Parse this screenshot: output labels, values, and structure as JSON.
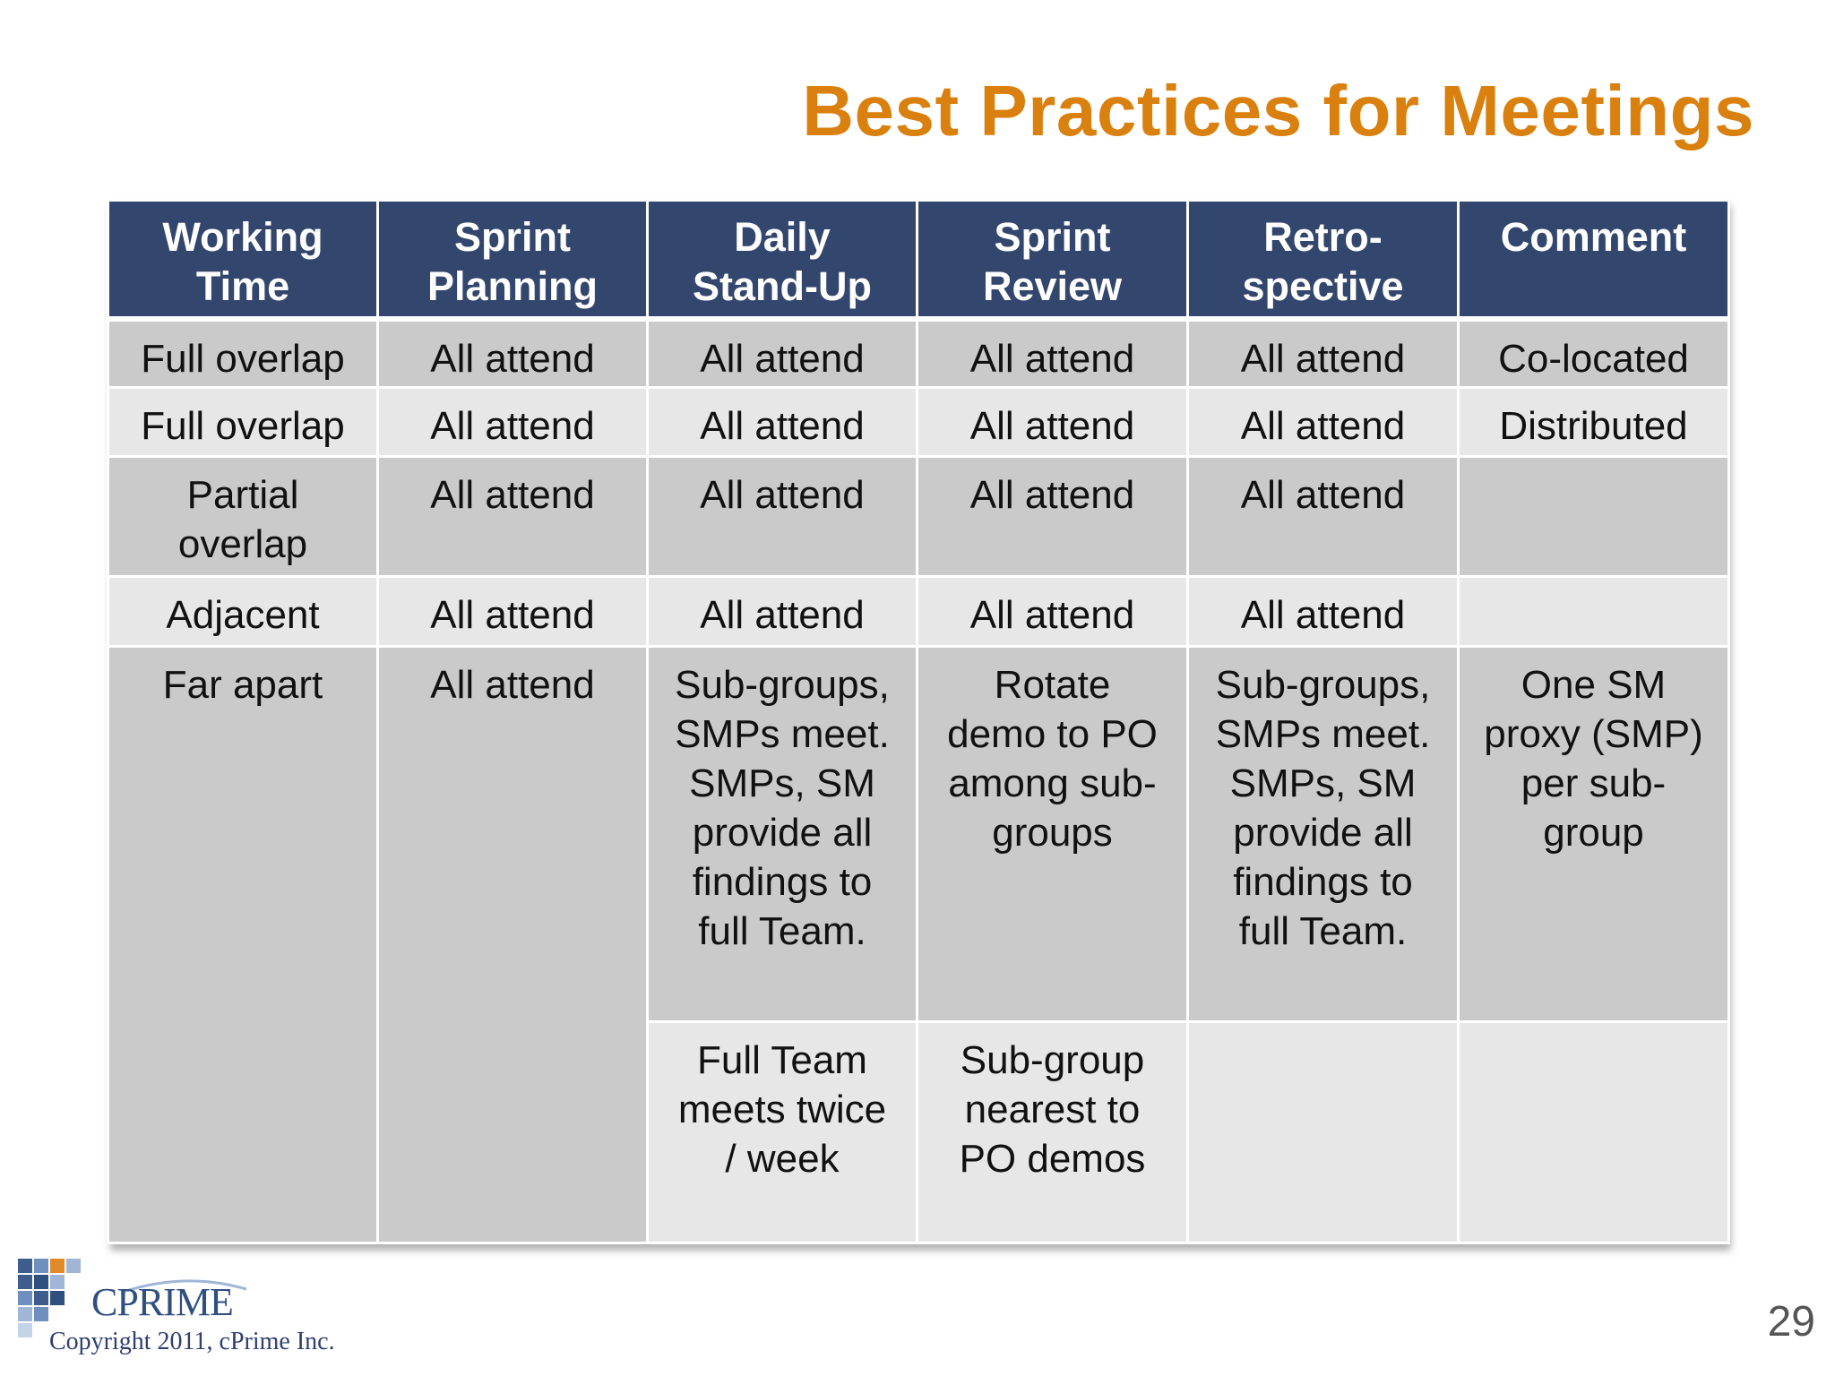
{
  "slide": {
    "title": "Best Practices for Meetings",
    "page_number": "29",
    "copyright": "Copyright 2011, cPrime Inc.",
    "logo_text": "CPRIME",
    "colors": {
      "title": "#d9800f",
      "header_bg": "#33466d",
      "row_dark": "#cacaca",
      "row_light": "#e7e7e7"
    }
  },
  "table": {
    "headers": [
      [
        "Working",
        "Time"
      ],
      [
        "Sprint",
        "Planning"
      ],
      [
        "Daily",
        "Stand-Up"
      ],
      [
        "Sprint",
        "Review"
      ],
      [
        "Retro-",
        "spective"
      ],
      [
        "Comment"
      ]
    ],
    "rows": [
      [
        "Full overlap",
        "All attend",
        "All attend",
        "All attend",
        "All attend",
        "Co-located"
      ],
      [
        "Full overlap",
        "All attend",
        "All attend",
        "All attend",
        "All attend",
        "Distributed"
      ],
      [
        [
          "Partial",
          "overlap"
        ],
        "All attend",
        "All attend",
        "All attend",
        "All attend",
        ""
      ],
      [
        "Adjacent",
        "All attend",
        "All attend",
        "All attend",
        "All attend",
        ""
      ]
    ],
    "far_apart": {
      "working_time": "Far apart",
      "sprint_planning": "All attend",
      "row_a": {
        "daily_standup": [
          "Sub-groups,",
          "SMPs meet.",
          "SMPs, SM",
          "provide all",
          "findings to",
          "full Team."
        ],
        "sprint_review": [
          "Rotate",
          "demo to PO",
          "among sub-",
          "groups"
        ],
        "retrospective": [
          "Sub-groups,",
          "SMPs meet.",
          "SMPs, SM",
          "provide all",
          "findings to",
          "full Team."
        ],
        "comment": [
          "One SM",
          "proxy (SMP)",
          "per sub-",
          "group"
        ]
      },
      "row_b": {
        "daily_standup": [
          "Full Team",
          "meets twice",
          "/ week"
        ],
        "sprint_review": [
          "Sub-group",
          "nearest to",
          "PO demos"
        ],
        "retrospective": "",
        "comment": ""
      }
    }
  }
}
